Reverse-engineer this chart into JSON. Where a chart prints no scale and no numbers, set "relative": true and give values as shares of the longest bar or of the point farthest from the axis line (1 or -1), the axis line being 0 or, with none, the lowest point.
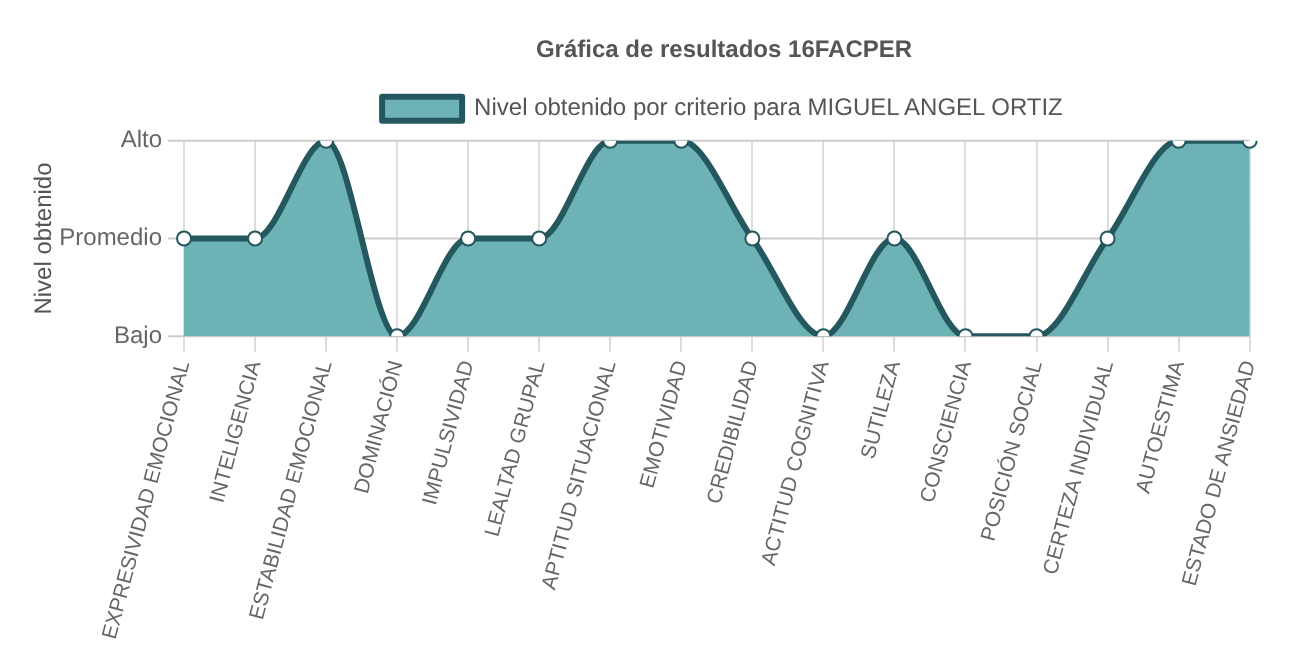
{
  "chart_data": {
    "type": "area",
    "title": "Gráfica de resultados 16FACPER",
    "ylabel": "Nivel obtenido",
    "relative": true,
    "categories": [
      "EXPRESIVIDAD EMOCIONAL",
      "INTELIGENCIA",
      "ESTABILIDAD EMOCIONAL",
      "DOMINACIÓN",
      "IMPULSIVIDAD",
      "LEALTAD GRUPAL",
      "APTITUD SITUACIONAL",
      "EMOTIVIDAD",
      "CREDIBILIDAD",
      "ACTITUD COGNITIVA",
      "SUTILEZA",
      "CONSCIENCIA",
      "POSICIÓN SOCIAL",
      "CERTEZA INDIVIDUAL",
      "AUTOESTIMA",
      "ESTADO DE ANSIEDAD"
    ],
    "series": [
      {
        "name": "Nivel obtenido por criterio para MIGUEL ANGEL ORTIZ",
        "color": "#6db3b6",
        "values": [
          0.5,
          0.5,
          1,
          0,
          0.5,
          0.5,
          1,
          1,
          0.5,
          0,
          0.5,
          0,
          0,
          0.5,
          1,
          1
        ]
      }
    ],
    "ref_lines": [
      {
        "axis": "y",
        "value": 0,
        "label": "Bajo"
      },
      {
        "axis": "y",
        "value": 0.5,
        "label": "Promedio"
      },
      {
        "axis": "y",
        "value": 1,
        "label": "Alto"
      }
    ],
    "grid": "x",
    "legend": "top",
    "marker": "circle"
  }
}
